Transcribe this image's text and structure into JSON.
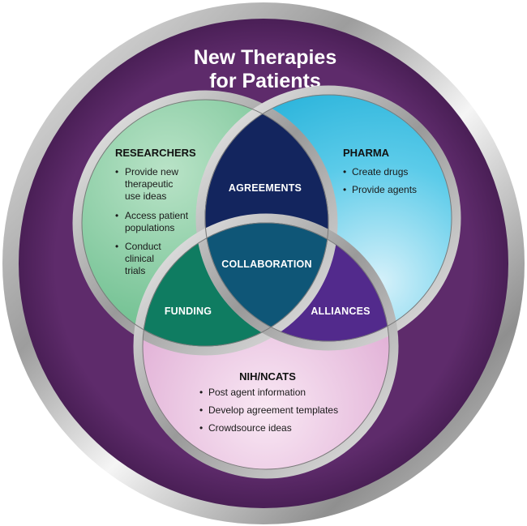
{
  "title": {
    "line1": "New Therapies",
    "line2": "for Patients"
  },
  "researchers": {
    "heading": "RESEARCHERS",
    "items": [
      [
        "Provide new",
        "therapeutic",
        "use ideas"
      ],
      [
        "Access patient",
        "populations"
      ],
      [
        "Conduct",
        "clinical",
        "trials"
      ]
    ]
  },
  "pharma": {
    "heading": "PHARMA",
    "items": [
      [
        "Create drugs"
      ],
      [
        "Provide agents"
      ]
    ]
  },
  "nih": {
    "heading": "NIH/NCATS",
    "items": [
      [
        "Post agent information"
      ],
      [
        "Develop agreement templates"
      ],
      [
        "Crowdsource ideas"
      ]
    ]
  },
  "intersections": {
    "agreements": "AGREEMENTS",
    "collaboration": "COLLABORATION",
    "funding": "FUNDING",
    "alliances": "ALLIANCES"
  },
  "bullet": "•",
  "colors": {
    "outer_purple": "#5b2a68",
    "researchers_green": "#7fc99a",
    "pharma_blue": "#35bde0",
    "nih_pink": "#e7b6dc",
    "agreements_navy": "#13255e",
    "funding_green": "#0f7c61",
    "alliances_purple": "#522a8c",
    "collaboration_teal": "#0f5677"
  }
}
